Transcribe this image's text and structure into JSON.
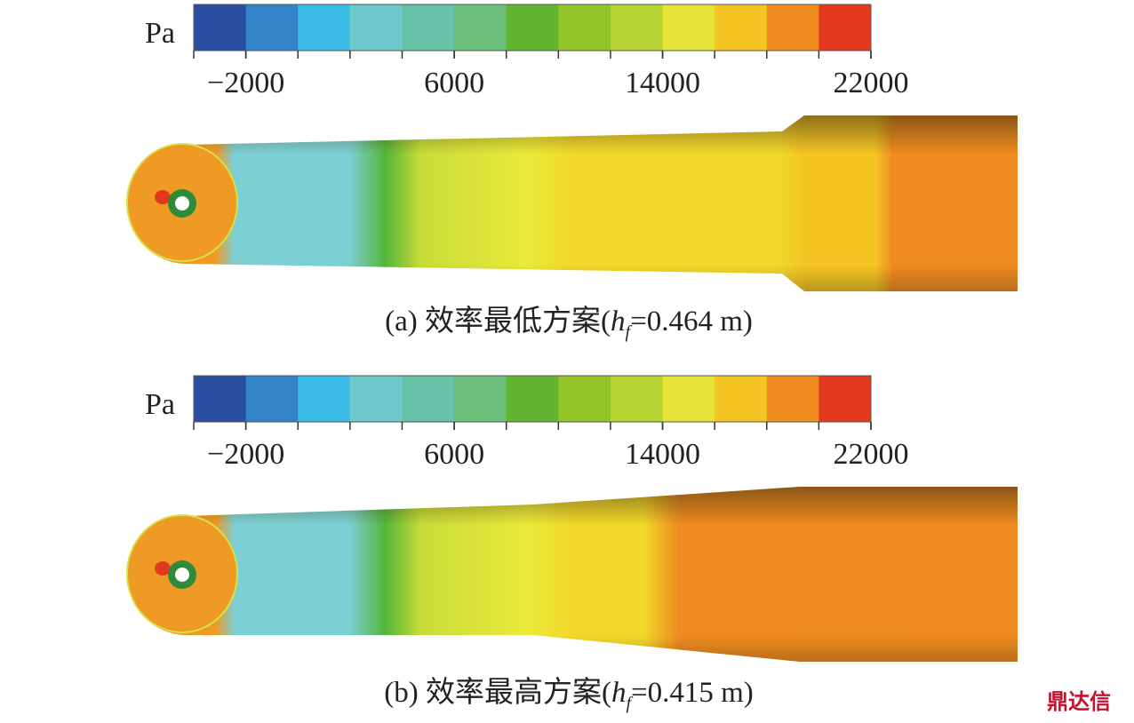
{
  "panels": [
    {
      "unit": "Pa",
      "colorbar": {
        "range": [
          -4000,
          22000
        ],
        "colors": [
          "#2a4fa0",
          "#3283c8",
          "#3cbde8",
          "#6ec9cc",
          "#67c1a6",
          "#6cbf7a",
          "#62b431",
          "#93c42a",
          "#b6d334",
          "#e5e33a",
          "#f4c523",
          "#ef8b1f",
          "#e2391e"
        ],
        "ticks": [
          {
            "value": -2000,
            "label": "−2000"
          },
          6000,
          14000,
          22000
        ]
      },
      "caption": {
        "prefix": "(a) 效率最低方案(",
        "variable": "h",
        "subscript": "f",
        "suffix": "=0.464 m)"
      }
    },
    {
      "unit": "Pa",
      "colorbar": {
        "range": [
          -4000,
          22000
        ],
        "colors": [
          "#2a4fa0",
          "#3283c8",
          "#3cbde8",
          "#6ec9cc",
          "#67c1a6",
          "#6cbf7a",
          "#62b431",
          "#93c42a",
          "#b6d334",
          "#e5e33a",
          "#f4c523",
          "#ef8b1f",
          "#e2391e"
        ],
        "ticks": [
          {
            "value": -2000,
            "label": "−2000"
          },
          6000,
          14000,
          22000
        ]
      },
      "caption": {
        "prefix": "(b) 效率最高方案(",
        "variable": "h",
        "subscript": "f",
        "suffix": "=0.415 m)"
      }
    }
  ],
  "watermark": "鼎达信"
}
